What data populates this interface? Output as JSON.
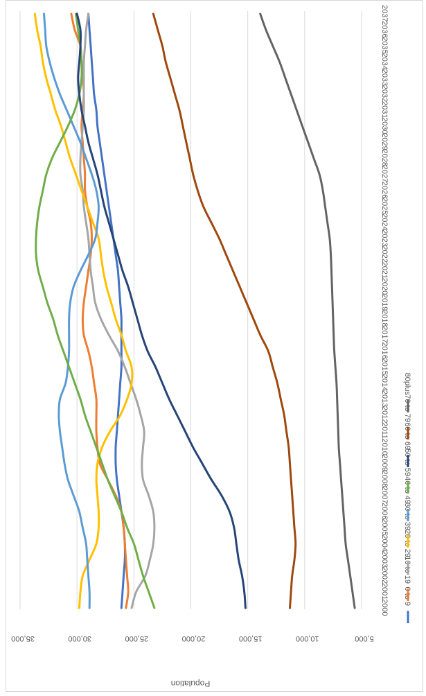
{
  "chart_data": {
    "type": "line",
    "title": "",
    "ylabel": "Population",
    "xlabel": "",
    "ylim": [
      5000,
      35000
    ],
    "yticks": [
      {
        "value": 5000,
        "label": "5,000"
      },
      {
        "value": 10000,
        "label": "10,000"
      },
      {
        "value": 15000,
        "label": "15,000"
      },
      {
        "value": 20000,
        "label": "20,000"
      },
      {
        "value": 25000,
        "label": "25,000"
      },
      {
        "value": 30000,
        "label": "30,000"
      },
      {
        "value": 35000,
        "label": "35,000"
      }
    ],
    "grid": true,
    "legend_position": "bottom",
    "orientation": "rotated",
    "categories": [
      "2000",
      "2001",
      "2002",
      "2003",
      "2004",
      "2005",
      "2006",
      "2007",
      "2008",
      "2009",
      "2010",
      "2011",
      "2012",
      "2013",
      "2014",
      "2015",
      "2016",
      "2017",
      "2018",
      "2019",
      "2020",
      "2021",
      "2022",
      "2023",
      "2024",
      "2025",
      "2026",
      "2027",
      "2028",
      "2029",
      "2030",
      "2031",
      "2032",
      "2033",
      "2034",
      "2035",
      "2036",
      "2037"
    ],
    "series": [
      {
        "name": "0 to 9",
        "color": "#4472C4",
        "values": [
          26100,
          26000,
          25900,
          25800,
          25800,
          25900,
          26100,
          26300,
          26500,
          26600,
          26600,
          26500,
          26400,
          26300,
          26200,
          26100,
          26100,
          26100,
          26100,
          26200,
          26300,
          26400,
          26600,
          26800,
          27000,
          27200,
          27400,
          27600,
          27800,
          28000,
          28200,
          28300,
          28500,
          28600,
          28700,
          28800,
          28900,
          29000
        ]
      },
      {
        "name": "10 to 19",
        "color": "#ED7D31",
        "values": [
          25700,
          25500,
          25600,
          25700,
          25800,
          25900,
          26100,
          26600,
          27300,
          28000,
          28200,
          28300,
          28300,
          28300,
          28500,
          28700,
          29000,
          29400,
          29500,
          29400,
          29200,
          29000,
          28800,
          28700,
          28800,
          29100,
          29300,
          29300,
          29400,
          29500,
          29600,
          29500,
          29400,
          29500,
          29600,
          29700,
          30200,
          30500
        ]
      },
      {
        "name": "20 to 29",
        "color": "#A5A5A5",
        "values": [
          25200,
          24800,
          24000,
          23600,
          23300,
          23200,
          23300,
          23700,
          24200,
          24300,
          24200,
          24100,
          24400,
          24800,
          25300,
          25800,
          26400,
          27200,
          27900,
          28400,
          28600,
          28800,
          28900,
          29000,
          29200,
          29400,
          29500,
          29700,
          29700,
          29600,
          29500,
          29400,
          29400,
          29400,
          29400,
          29300,
          29200,
          29000
        ]
      },
      {
        "name": "30 to 39",
        "color": "#FFC000",
        "values": [
          29800,
          29700,
          29500,
          28900,
          28300,
          28100,
          28100,
          28200,
          28300,
          28200,
          27800,
          27100,
          26200,
          25600,
          25200,
          25200,
          25700,
          26100,
          26600,
          27000,
          27400,
          27700,
          27900,
          28100,
          28600,
          29100,
          29600,
          30100,
          30600,
          31000,
          31400,
          31900,
          32300,
          32700,
          33000,
          33200,
          33500,
          33700
        ]
      },
      {
        "name": "40 to 49",
        "color": "#5B9BD5",
        "values": [
          28900,
          28900,
          29000,
          29100,
          29200,
          29500,
          29800,
          30300,
          30800,
          31100,
          31300,
          31500,
          31600,
          31500,
          31000,
          30800,
          30700,
          30700,
          30700,
          30600,
          30300,
          29700,
          29000,
          28400,
          28200,
          28100,
          28300,
          28700,
          29200,
          29700,
          30300,
          30900,
          31500,
          32000,
          32400,
          32700,
          32800,
          32900
        ]
      },
      {
        "name": "50 to 59",
        "color": "#70AD47",
        "values": [
          23200,
          23700,
          24200,
          24600,
          25000,
          25600,
          26100,
          26700,
          27300,
          27800,
          28300,
          28800,
          29300,
          29700,
          30200,
          30700,
          31200,
          31700,
          32100,
          32600,
          33000,
          33400,
          33600,
          33600,
          33500,
          33300,
          33000,
          32700,
          32200,
          31500,
          30800,
          30200,
          29800,
          29600,
          29600,
          29700,
          29900,
          30100
        ]
      },
      {
        "name": "60 to 69",
        "color": "#264478",
        "values": [
          15200,
          15300,
          15500,
          15800,
          16000,
          16200,
          16600,
          17300,
          18200,
          19000,
          19800,
          20500,
          21200,
          21900,
          22500,
          23100,
          23800,
          24300,
          24700,
          25100,
          25500,
          26000,
          26400,
          26800,
          27200,
          27600,
          27900,
          28200,
          28600,
          29000,
          29300,
          29600,
          29800,
          29900,
          29800,
          29700,
          29700,
          30000
        ]
      },
      {
        "name": "70 to 79",
        "color": "#9E480E",
        "values": [
          11300,
          11200,
          11100,
          10900,
          10800,
          10900,
          11000,
          11100,
          11200,
          11300,
          11400,
          11600,
          11800,
          12100,
          12400,
          12800,
          13200,
          13900,
          14500,
          15100,
          15700,
          16300,
          16900,
          17500,
          18200,
          18900,
          19400,
          19800,
          20100,
          20400,
          20700,
          21000,
          21400,
          21800,
          22200,
          22500,
          22900,
          23300
        ]
      },
      {
        "name": "80plus",
        "color": "#636363",
        "values": [
          5600,
          5800,
          6000,
          6200,
          6400,
          6500,
          6600,
          6700,
          6800,
          6900,
          7000,
          7050,
          7100,
          7150,
          7200,
          7300,
          7400,
          7450,
          7500,
          7550,
          7600,
          7650,
          7700,
          7800,
          8000,
          8200,
          8400,
          8700,
          9200,
          9700,
          10200,
          10700,
          11200,
          11700,
          12200,
          12800,
          13400,
          13900
        ]
      }
    ]
  }
}
